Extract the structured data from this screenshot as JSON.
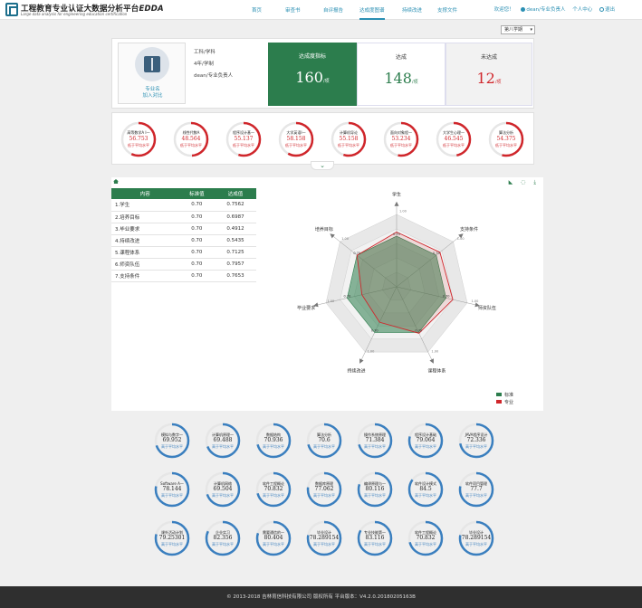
{
  "header": {
    "logo_cn": "工程教育专业认证大数据分析平台",
    "logo_brand": "EDDA",
    "logo_en": "Large data analysis for engineering education certification",
    "nav": [
      "首页",
      "审查书",
      "自评报告",
      "达成度图谱",
      "持续改进",
      "支撑文件"
    ],
    "active_nav": 3,
    "welcome": "欢迎您！",
    "user": "dean/专业负责人",
    "personal_center": "个人中心",
    "logout": "退出"
  },
  "semester": {
    "selected": "第八学期"
  },
  "profile": {
    "name_line1": "专业名",
    "name_line2": "加入对比",
    "field1": "工科/学科",
    "field2": "4年/学制",
    "field3": "dean/专业负责人",
    "stats": [
      {
        "label": "达成度指标",
        "value": "160",
        "unit": "/项"
      },
      {
        "label": "达成",
        "value": "148",
        "unit": "/项"
      },
      {
        "label": "未达成",
        "value": "12",
        "unit": "/项"
      }
    ]
  },
  "top_gauges": [
    {
      "name": "高等数学A I一",
      "value": "56.753",
      "note": "低于平均水平",
      "pct": 0.57
    },
    {
      "name": "线性代数A",
      "value": "48.564",
      "note": "低于平均水平",
      "pct": 0.49
    },
    {
      "name": "程序设计基一",
      "value": "55.137",
      "note": "低于平均水平",
      "pct": 0.55
    },
    {
      "name": "大学英语I一",
      "value": "58.158",
      "note": "低于平均水平",
      "pct": 0.58
    },
    {
      "name": "计算机导论",
      "value": "55.158",
      "note": "低于平均水平",
      "pct": 0.55
    },
    {
      "name": "面向对象程一",
      "value": "53.234",
      "note": "低于平均水平",
      "pct": 0.53
    },
    {
      "name": "大学生心理一",
      "value": "46.545",
      "note": "低于平均水平",
      "pct": 0.47
    },
    {
      "name": "算法分析",
      "value": "54.375",
      "note": "低于平均水平",
      "pct": 0.54
    }
  ],
  "table": {
    "headers": [
      "内容",
      "标准值",
      "达成值"
    ],
    "rows": [
      [
        "1.学生",
        "0.70",
        "0.7562"
      ],
      [
        "2.培养目标",
        "0.70",
        "0.6987"
      ],
      [
        "3.毕业要求",
        "0.70",
        "0.4912"
      ],
      [
        "4.持续改进",
        "0.70",
        "0.5435"
      ],
      [
        "5.课程体系",
        "0.70",
        "0.7125"
      ],
      [
        "6.师资队伍",
        "0.70",
        "0.7957"
      ],
      [
        "7.支持条件",
        "0.70",
        "0.7653"
      ]
    ]
  },
  "chart_data": {
    "type": "radar",
    "axes": [
      "学生",
      "支持条件",
      "师资队伍",
      "课程体系",
      "持续改进",
      "毕业要求",
      "培养目标"
    ],
    "max": 1.0,
    "series": [
      {
        "name": "标准",
        "values": [
          0.7,
          0.7,
          0.7,
          0.7,
          0.7,
          0.7,
          0.7
        ],
        "color": "#2c7d4d"
      },
      {
        "name": "专业",
        "values": [
          0.7562,
          0.7653,
          0.7957,
          0.7125,
          0.5435,
          0.4912,
          0.6987
        ],
        "color": "#d0262b"
      }
    ]
  },
  "bottom_gauges": [
    {
      "name": "模拟与数字一",
      "value": "69.952",
      "note": "高于平均水平",
      "pct": 0.7
    },
    {
      "name": "计算机原理一",
      "value": "69.488",
      "note": "高于平均水平",
      "pct": 0.69
    },
    {
      "name": "数据结构",
      "value": "70.936",
      "note": "高于平均水平",
      "pct": 0.71
    },
    {
      "name": "算法分析",
      "value": "70.6",
      "note": "高于平均水平",
      "pct": 0.71
    },
    {
      "name": "操作系统原理",
      "value": "71.384",
      "note": "高于平均水平",
      "pct": 0.71
    },
    {
      "name": "程序设计基础",
      "value": "79.064",
      "note": "高于平均水平",
      "pct": 0.79
    },
    {
      "name": "JAVA程序设计",
      "value": "72.336",
      "note": "高于平均水平",
      "pct": 0.72
    },
    {
      "name": "Software A一",
      "value": "78.144",
      "note": "高于平均水平",
      "pct": 0.78
    },
    {
      "name": "计算机网络",
      "value": "69.504",
      "note": "高于平均水平",
      "pct": 0.7
    },
    {
      "name": "软件工程概论",
      "value": "70.832",
      "note": "高于平均水平",
      "pct": 0.71
    },
    {
      "name": "数据库原理",
      "value": "77.062",
      "note": "高于平均水平",
      "pct": 0.77
    },
    {
      "name": "编译原理与一",
      "value": "80.116",
      "note": "高于平均水平",
      "pct": 0.8
    },
    {
      "name": "软件设计模式",
      "value": "84.5",
      "note": "高于平均水平",
      "pct": 0.85
    },
    {
      "name": "软件项目管理",
      "value": "77.7",
      "note": "高于平均水平",
      "pct": 0.78
    },
    {
      "name": "课外活动计划",
      "value": "79.25301",
      "note": "高于平均水平",
      "pct": 0.79
    },
    {
      "name": "企业实习",
      "value": "82.356",
      "note": "高于平均水平",
      "pct": 0.82
    },
    {
      "name": "需要通信的一",
      "value": "80.404",
      "note": "高于平均水平",
      "pct": 0.8
    },
    {
      "name": "毕业设计",
      "value": "78.289154",
      "note": "高于平均水平",
      "pct": 0.78
    },
    {
      "name": "专业技能第一",
      "value": "83.116",
      "note": "高于平均水平",
      "pct": 0.83
    },
    {
      "name": "软件工程概论",
      "value": "70.832",
      "note": "高于平均水平",
      "pct": 0.71
    },
    {
      "name": "毕业设计",
      "value": "78.289154",
      "note": "高于平均水平",
      "pct": 0.78
    }
  ],
  "footer": "© 2013-2018 吉林育信科技有限公司 版权所有 平台版本：V4.2.0.20180205163B",
  "colors": {
    "green": "#2c7d4d",
    "red": "#d0262b",
    "blue": "#3a7fbf",
    "link": "#2a8fb3"
  }
}
